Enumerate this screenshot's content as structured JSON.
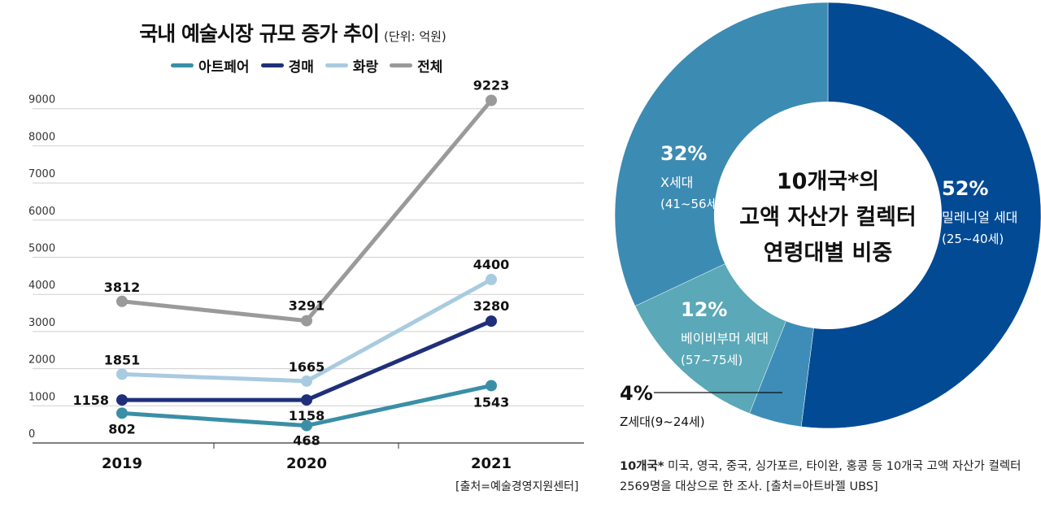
{
  "left_chart": {
    "title": "국내 예술시장 규모 증가 추이",
    "unit": "(단위: 억원)",
    "source": "[출처=예술경영지원센터]"
  },
  "right_chart": {
    "center_lines": [
      "10개국*의",
      "고액 자산가 컬렉터",
      "연령대별 비중"
    ],
    "note_bold": "10개국*",
    "note_text": " 미국, 영국, 중국, 싱가포르, 타이완, 홍콩 등 10개국 고액 자산가 컬렉터 2569명을 대상으로 한 조사.  [출처=아트바젤 UBS]"
  },
  "chart_data": [
    {
      "type": "line",
      "title": "국내 예술시장 규모 증가 추이",
      "subtitle": "(단위: 억원)",
      "categories": [
        "2019",
        "2020",
        "2021"
      ],
      "y_ticks": [
        0,
        1000,
        2000,
        3000,
        4000,
        5000,
        6000,
        7000,
        8000,
        9000
      ],
      "ylim": [
        0,
        9500
      ],
      "grid": true,
      "legend_position": "top",
      "series": [
        {
          "name": "아트페어",
          "color": "#3a8fa6",
          "values": [
            802,
            468,
            1543
          ]
        },
        {
          "name": "경매",
          "color": "#1f2f7a",
          "values": [
            1158,
            1158,
            3280
          ]
        },
        {
          "name": "화랑",
          "color": "#a9cbe0",
          "values": [
            1851,
            1665,
            4400
          ]
        },
        {
          "name": "전체",
          "color": "#9a9a9a",
          "values": [
            3812,
            3291,
            9223
          ]
        }
      ]
    },
    {
      "type": "pie",
      "slices": [
        {
          "label": "밀레니얼 세대",
          "range": "(25~40세)",
          "percent": 52,
          "percent_label": "52%",
          "color": "#034a94"
        },
        {
          "label": "Z세대",
          "range": "(9~24세)",
          "percent": 4,
          "percent_label": "4%",
          "color": "#3d8db8"
        },
        {
          "label": "베이비부머 세대",
          "range": "(57~75세)",
          "percent": 12,
          "percent_label": "12%",
          "color": "#5aa8b8"
        },
        {
          "label": "X세대",
          "range": "(41~56세)",
          "percent": 32,
          "percent_label": "32%",
          "color": "#3c8bb2"
        }
      ]
    }
  ]
}
